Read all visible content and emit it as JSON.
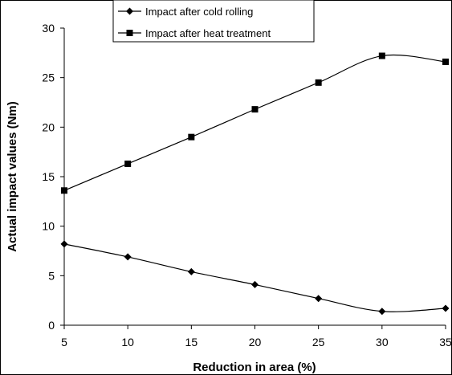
{
  "chart_data": {
    "type": "line",
    "x": [
      5,
      10,
      15,
      20,
      25,
      30,
      35
    ],
    "xlabel": "Reduction in area (%)",
    "ylabel": "Actual impact values (Nm)",
    "xlim": [
      5,
      35
    ],
    "ylim": [
      0,
      30
    ],
    "xticks": [
      "5",
      "10",
      "15",
      "20",
      "25",
      "30",
      "35"
    ],
    "yticks": [
      "0",
      "5",
      "10",
      "15",
      "20",
      "25",
      "30"
    ],
    "grid": false,
    "legend_position": "top-center",
    "series": [
      {
        "name": "Impact after cold rolling",
        "marker": "diamond",
        "color": "#000000",
        "values": [
          8.2,
          6.9,
          5.4,
          4.1,
          2.7,
          1.4,
          1.7
        ]
      },
      {
        "name": "Impact after heat treatment",
        "marker": "square",
        "color": "#000000",
        "values": [
          13.6,
          16.3,
          19.0,
          21.8,
          24.5,
          27.2,
          26.6
        ]
      }
    ]
  }
}
